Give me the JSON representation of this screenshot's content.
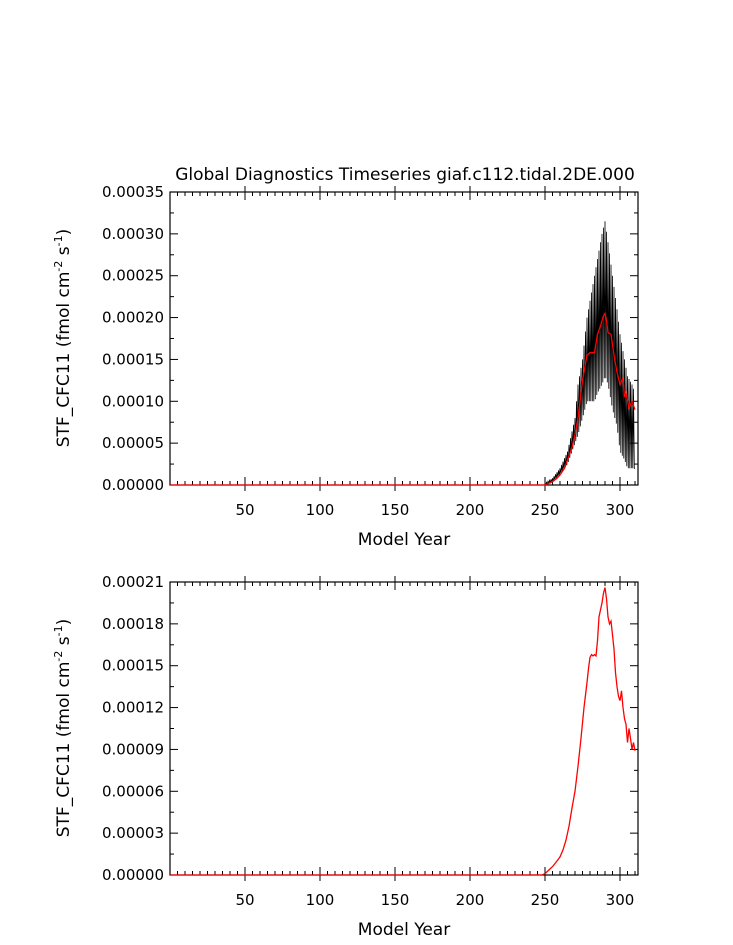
{
  "chart_data": [
    {
      "type": "line",
      "title": "Global Diagnostics Timeseries giaf.c112.tidal.2DE.000",
      "xlabel": "Model Year",
      "ylabel": "STF_CFC11 (fmol cm",
      "ylabel_sup1": "-2",
      "ylabel_mid": " s",
      "ylabel_sup2": "-1",
      "ylabel_end": ")",
      "xlim": [
        0,
        312
      ],
      "ylim": [
        0,
        0.00035
      ],
      "xticks": [
        50,
        100,
        150,
        200,
        250,
        300
      ],
      "xtick_labels": [
        "50",
        "100",
        "150",
        "200",
        "250",
        "300"
      ],
      "yticks": [
        0,
        5e-05,
        0.0001,
        0.00015,
        0.0002,
        0.00025,
        0.0003,
        0.00035
      ],
      "ytick_labels": [
        "0.00000",
        "0.00005",
        "0.00010",
        "0.00015",
        "0.00020",
        "0.00025",
        "0.00030",
        "0.00035"
      ],
      "series": [
        {
          "color": "#000000",
          "style": "monthly envelope",
          "x": [
            250,
            255,
            260,
            265,
            270,
            272,
            275,
            278,
            280,
            283,
            285,
            288,
            290,
            292,
            295,
            298,
            300,
            303,
            305,
            308,
            310
          ],
          "y_min": [
            0,
            4e-06,
            1.2e-05,
            2.5e-05,
            5e-05,
            6e-05,
            8e-05,
            0.0001,
            0.0001,
            0.0001,
            0.00011,
            0.00012,
            0.00013,
            0.00012,
            9e-05,
            7e-05,
            4e-05,
            3e-05,
            2e-05,
            2e-05,
            2e-05
          ],
          "y_max": [
            2e-06,
            8e-06,
            2e-05,
            4e-05,
            8e-05,
            0.00012,
            0.00015,
            0.0002,
            0.00022,
            0.00025,
            0.00027,
            0.0003,
            0.000315,
            0.00029,
            0.00025,
            0.00021,
            0.00018,
            0.00015,
            0.00013,
            0.00012,
            0.00011
          ]
        },
        {
          "color": "#ff0000",
          "style": "annual mean",
          "x": [
            250,
            255,
            258,
            260,
            263,
            265,
            268,
            270,
            272,
            275,
            278,
            280,
            283,
            285,
            287,
            289,
            290,
            291,
            292,
            294,
            296,
            298,
            300,
            302,
            303,
            304,
            306,
            308,
            310
          ],
          "y": [
            0,
            4e-06,
            8e-06,
            1.2e-05,
            2e-05,
            3e-05,
            4.5e-05,
            6e-05,
            8e-05,
            0.000125,
            0.000155,
            0.000158,
            0.000158,
            0.00018,
            0.00019,
            0.000202,
            0.000205,
            0.000196,
            0.000182,
            0.00018,
            0.000155,
            0.000135,
            0.00012,
            0.000128,
            0.000105,
            0.00011,
            9.2e-05,
            0.0001,
            9e-05
          ]
        }
      ]
    },
    {
      "type": "line",
      "xlabel": "Model Year",
      "ylabel": "STF_CFC11 (fmol cm",
      "ylabel_sup1": "-2",
      "ylabel_mid": " s",
      "ylabel_sup2": "-1",
      "ylabel_end": ")",
      "xlim": [
        0,
        312
      ],
      "ylim": [
        0,
        0.00021
      ],
      "xticks": [
        50,
        100,
        150,
        200,
        250,
        300
      ],
      "xtick_labels": [
        "50",
        "100",
        "150",
        "200",
        "250",
        "300"
      ],
      "yticks": [
        0,
        3e-05,
        6e-05,
        9e-05,
        0.00012,
        0.00015,
        0.00018,
        0.00021
      ],
      "ytick_labels": [
        "0.00000",
        "0.00003",
        "0.00006",
        "0.00009",
        "0.00012",
        "0.00015",
        "0.00018",
        "0.00021"
      ],
      "series": [
        {
          "color": "#ff0000",
          "x": [
            0,
            248,
            250,
            253,
            255,
            258,
            260,
            262,
            264,
            266,
            268,
            270,
            272,
            274,
            276,
            278,
            279,
            280,
            281,
            282,
            283,
            284,
            285,
            286,
            287,
            288,
            289,
            290,
            291,
            292,
            293,
            294,
            295,
            296,
            297,
            298,
            299,
            300,
            301,
            302,
            303,
            304,
            305,
            306,
            307,
            308,
            309,
            310
          ],
          "y": [
            0,
            0,
            1e-06,
            4e-06,
            6e-06,
            1e-05,
            1.3e-05,
            1.8e-05,
            2.5e-05,
            3.5e-05,
            4.8e-05,
            6e-05,
            7.8e-05,
            9.8e-05,
            0.00012,
            0.000138,
            0.000148,
            0.000156,
            0.000158,
            0.000157,
            0.000158,
            0.000157,
            0.000168,
            0.000185,
            0.00019,
            0.000195,
            0.000202,
            0.000206,
            0.000198,
            0.000185,
            0.00018,
            0.000182,
            0.000172,
            0.000162,
            0.000145,
            0.000135,
            0.000128,
            0.000125,
            0.000132,
            0.00012,
            0.000112,
            0.000108,
            9.5e-05,
            0.000105,
            9.8e-05,
            9e-05,
            9.5e-05,
            8.9e-05
          ]
        }
      ]
    }
  ]
}
